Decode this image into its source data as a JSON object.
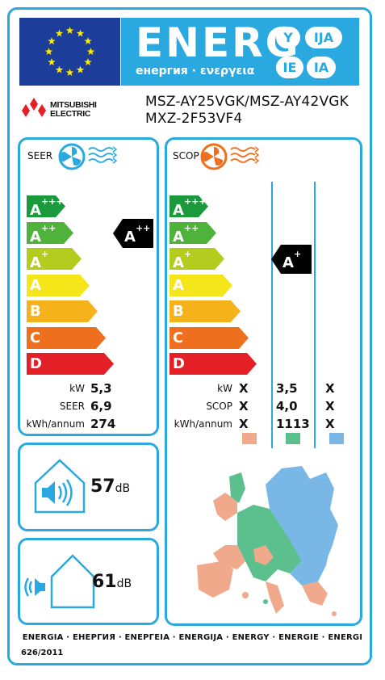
{
  "header": {
    "energ_word": "ENERG",
    "energ_sub": "енергия · ενεργεια",
    "lang_badges": [
      "Y",
      "IJA",
      "IE",
      "IA"
    ]
  },
  "supplier": {
    "brand_line1": "MITSUBISHI",
    "brand_line2": "ELECTRIC",
    "model_line1": "MSZ-AY25VGK/MSZ-AY42VGK",
    "model_line2": "MXZ-2F53VF4"
  },
  "cooling": {
    "title": "SEER",
    "classes": [
      {
        "base": "A",
        "sup": "+++",
        "color": "#1a9a3c"
      },
      {
        "base": "A",
        "sup": "++",
        "color": "#4fb23a"
      },
      {
        "base": "A",
        "sup": "+",
        "color": "#b3cc1e"
      },
      {
        "base": "A",
        "sup": "",
        "color": "#f5e61a"
      },
      {
        "base": "B",
        "sup": "",
        "color": "#f6b21a"
      },
      {
        "base": "C",
        "sup": "",
        "color": "#ee6f1d"
      },
      {
        "base": "D",
        "sup": "",
        "color": "#e41f26"
      }
    ],
    "rating": {
      "base": "A",
      "sup": "++",
      "class_index": 1
    },
    "rows": [
      {
        "label": "kW",
        "value": "5,3"
      },
      {
        "label": "SEER",
        "value": "6,9"
      },
      {
        "label": "kWh/annum",
        "value": "274"
      }
    ]
  },
  "heating": {
    "title": "SCOP",
    "classes": [
      {
        "base": "A",
        "sup": "+++",
        "color": "#1a9a3c"
      },
      {
        "base": "A",
        "sup": "++",
        "color": "#4fb23a"
      },
      {
        "base": "A",
        "sup": "+",
        "color": "#b3cc1e"
      },
      {
        "base": "A",
        "sup": "",
        "color": "#f5e61a"
      },
      {
        "base": "B",
        "sup": "",
        "color": "#f6b21a"
      },
      {
        "base": "C",
        "sup": "",
        "color": "#ee6f1d"
      },
      {
        "base": "D",
        "sup": "",
        "color": "#e41f26"
      }
    ],
    "rating": {
      "base": "A",
      "sup": "+",
      "class_index": 2
    },
    "rows": [
      {
        "label": "kW",
        "values": [
          "X",
          "3,5",
          "X"
        ]
      },
      {
        "label": "SCOP",
        "values": [
          "X",
          "4,0",
          "X"
        ]
      },
      {
        "label": "kWh/annum",
        "values": [
          "X",
          "1113",
          "X"
        ]
      }
    ],
    "zone_colors": [
      "#f0a98a",
      "#5cc08e",
      "#79b8e6"
    ]
  },
  "noise": {
    "indoor_value": "57",
    "outdoor_value": "61",
    "unit": "dB"
  },
  "footer": {
    "languages": "ENERGIA · ЕНЕРГИЯ · ΕΝΕΡΓΕΙΑ · ENERGIJA · ENERGY · ENERGIE · ENERGI",
    "regulation": "626/2011"
  },
  "colors": {
    "frame": "#29a9e0",
    "eu_blue": "#1d3d9b",
    "eu_star": "#ffed00",
    "cooling_icon": "#29a9e0",
    "heating_icon": "#ee6f1d"
  },
  "icons": [
    "eu-flag-icon",
    "mitsubishi-diamonds-icon",
    "fan-cooling-icon",
    "fan-heating-icon",
    "speaker-indoor-icon",
    "speaker-outdoor-icon",
    "europe-climate-map-icon"
  ]
}
